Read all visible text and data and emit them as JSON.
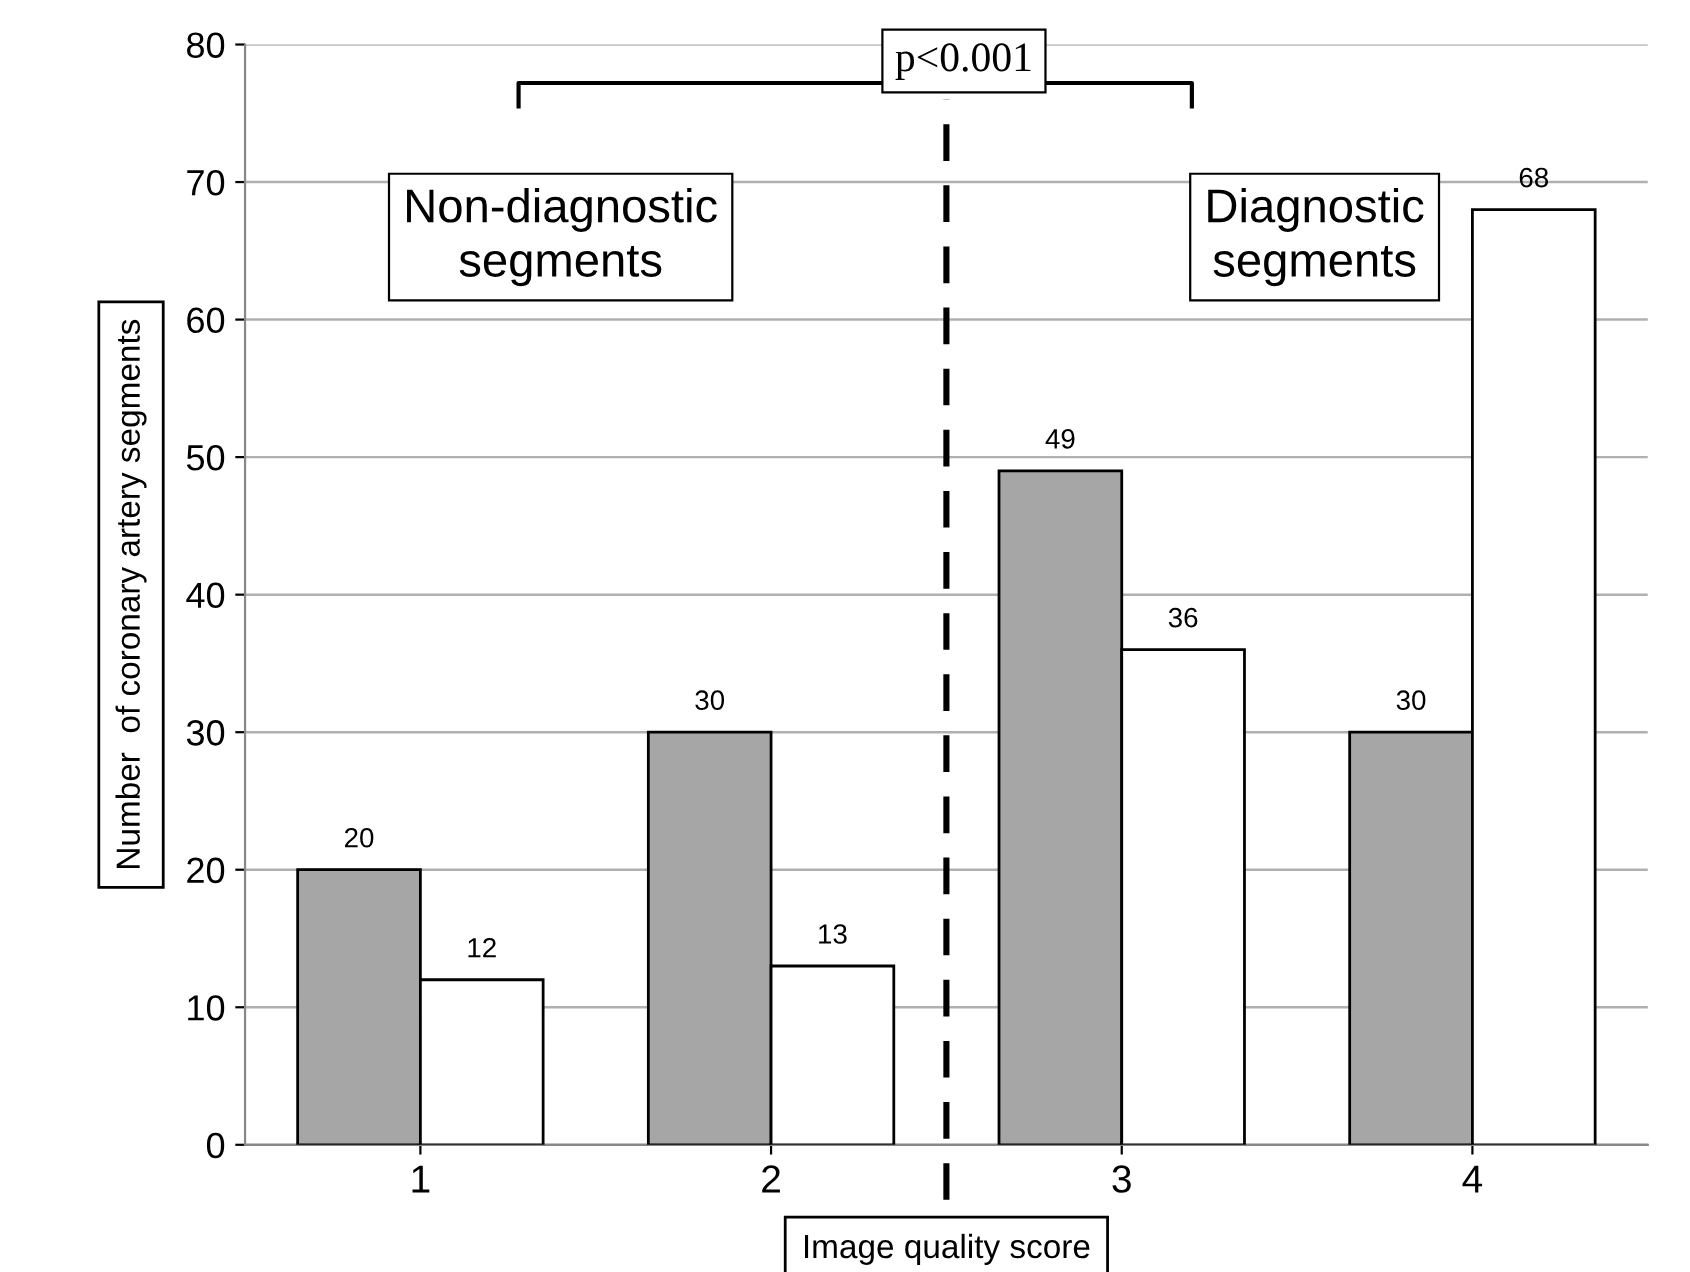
{
  "chart_data": {
    "type": "bar",
    "x": [
      1,
      2,
      3,
      4
    ],
    "xlim": [
      0.5,
      4.5
    ],
    "xticks": [
      1,
      2,
      3,
      4
    ],
    "ylim": [
      0,
      80
    ],
    "yticks": [
      0,
      10,
      20,
      30,
      40,
      50,
      60,
      70,
      80
    ],
    "xlabel": "Image quality score",
    "ylabel": "Number  of coronary artery segments",
    "series": [
      {
        "color": "#a6a6a6",
        "values": [
          20,
          30,
          49,
          30
        ]
      },
      {
        "color": "#ffffff",
        "values": [
          12,
          13,
          36,
          68
        ]
      }
    ],
    "data_labels": true,
    "grid": "y",
    "ref_lines": [
      {
        "axis": "x",
        "value": 2.5,
        "line_style": "dashed",
        "color": "#000000"
      }
    ],
    "annotations": [
      "p<0.001",
      "Non-diagnostic\nsegments",
      "Diagnostic\nsegments"
    ]
  }
}
